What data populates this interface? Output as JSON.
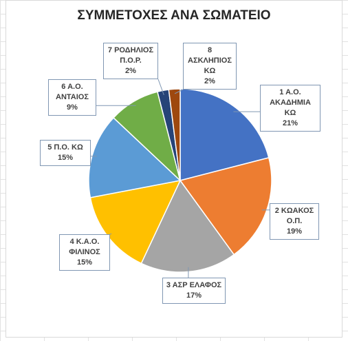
{
  "chart_data": {
    "type": "pie",
    "title": "ΣΥΜΜΕΤΟΧΕΣ ΑΝΑ ΣΩΜΑΤΕΙΟ",
    "categories": [
      "1 Α.Ο. ΑΚΑΔΗΜΙΑ ΚΩ",
      "2 ΚΩΑΚΟΣ Ο.Π.",
      "3 ΑΣΡ ΕΛΑΦΟΣ",
      "4 Κ.Α.Ο. ΦΙΛΙΝΟΣ",
      "5 Π.Ο. ΚΩ",
      "6 Α.Ο. ΑΝΤΑΙΟΣ",
      "7 ΡΟΔΗΛΙΟΣ Π.Ο.Ρ.",
      "8 ΑΣΚΛΗΠΙΟΣ ΚΩ"
    ],
    "values": [
      21,
      19,
      17,
      15,
      15,
      9,
      2,
      2
    ],
    "value_labels": [
      "21%",
      "19%",
      "17%",
      "15%",
      "15%",
      "9%",
      "2%",
      "2%"
    ],
    "colors": [
      "#4472c4",
      "#ed7d31",
      "#a5a5a5",
      "#ffc000",
      "#5b9bd5",
      "#70ad47",
      "#264478",
      "#9e480e"
    ]
  }
}
